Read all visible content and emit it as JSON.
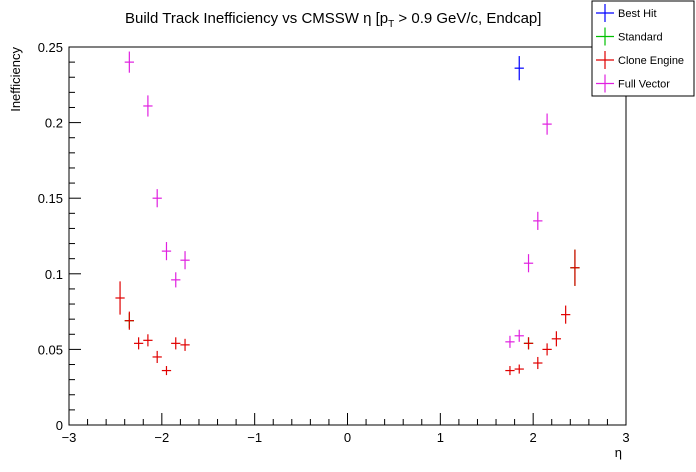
{
  "chart_data": {
    "type": "scatter",
    "title": "Build Track Inefficiency vs CMSSW η [p_T > 0.9 GeV/c, Endcap]",
    "title_parts": {
      "main": "Build Track Inefficiency vs CMSSW η [p",
      "sub": "T",
      "rest": " > 0.9 GeV/c, Endcap]"
    },
    "xlabel": "η",
    "ylabel": "Inefficiency",
    "xlim": [
      -3,
      3
    ],
    "ylim": [
      0,
      0.25
    ],
    "x_tick_labels": [
      "−3",
      "−2",
      "−1",
      "0",
      "1",
      "2",
      "3"
    ],
    "y_tick_labels": [
      "0",
      "0.05",
      "0.1",
      "0.15",
      "0.2",
      "0.25"
    ],
    "legend_position": "top-right",
    "series": [
      {
        "name": "Best Hit",
        "color": "#0000ff",
        "points": [
          {
            "x": 1.85,
            "y": 0.236,
            "yerr": 0.008
          }
        ]
      },
      {
        "name": "Standard",
        "color": "#00c000",
        "points": [
          {
            "x": -2.35,
            "y": 0.069,
            "yerr": 0.005
          },
          {
            "x": 1.95,
            "y": 0.054,
            "yerr": 0.004
          },
          {
            "x": 2.45,
            "y": 0.104,
            "yerr": 0.012
          }
        ]
      },
      {
        "name": "Clone Engine",
        "color": "#e00000",
        "points": [
          {
            "x": -2.45,
            "y": 0.084,
            "yerr": 0.011
          },
          {
            "x": -2.35,
            "y": 0.069,
            "yerr": 0.006
          },
          {
            "x": -2.25,
            "y": 0.054,
            "yerr": 0.004
          },
          {
            "x": -2.15,
            "y": 0.056,
            "yerr": 0.004
          },
          {
            "x": -2.05,
            "y": 0.045,
            "yerr": 0.004
          },
          {
            "x": -1.95,
            "y": 0.036,
            "yerr": 0.003
          },
          {
            "x": -1.85,
            "y": 0.054,
            "yerr": 0.004
          },
          {
            "x": -1.75,
            "y": 0.053,
            "yerr": 0.004
          },
          {
            "x": 1.75,
            "y": 0.036,
            "yerr": 0.003
          },
          {
            "x": 1.85,
            "y": 0.037,
            "yerr": 0.003
          },
          {
            "x": 1.95,
            "y": 0.054,
            "yerr": 0.004
          },
          {
            "x": 2.05,
            "y": 0.041,
            "yerr": 0.004
          },
          {
            "x": 2.15,
            "y": 0.05,
            "yerr": 0.004
          },
          {
            "x": 2.25,
            "y": 0.057,
            "yerr": 0.005
          },
          {
            "x": 2.35,
            "y": 0.073,
            "yerr": 0.006
          },
          {
            "x": 2.45,
            "y": 0.104,
            "yerr": 0.012
          }
        ]
      },
      {
        "name": "Full Vector",
        "color": "#e020e0",
        "points": [
          {
            "x": -2.35,
            "y": 0.24,
            "yerr": 0.007
          },
          {
            "x": -2.15,
            "y": 0.211,
            "yerr": 0.007
          },
          {
            "x": -2.05,
            "y": 0.15,
            "yerr": 0.006
          },
          {
            "x": -1.95,
            "y": 0.115,
            "yerr": 0.006
          },
          {
            "x": -1.85,
            "y": 0.096,
            "yerr": 0.005
          },
          {
            "x": -1.75,
            "y": 0.109,
            "yerr": 0.006
          },
          {
            "x": 1.75,
            "y": 0.055,
            "yerr": 0.004
          },
          {
            "x": 1.85,
            "y": 0.059,
            "yerr": 0.004
          },
          {
            "x": 1.95,
            "y": 0.107,
            "yerr": 0.006
          },
          {
            "x": 2.05,
            "y": 0.135,
            "yerr": 0.006
          },
          {
            "x": 2.15,
            "y": 0.199,
            "yerr": 0.007
          }
        ]
      }
    ]
  }
}
